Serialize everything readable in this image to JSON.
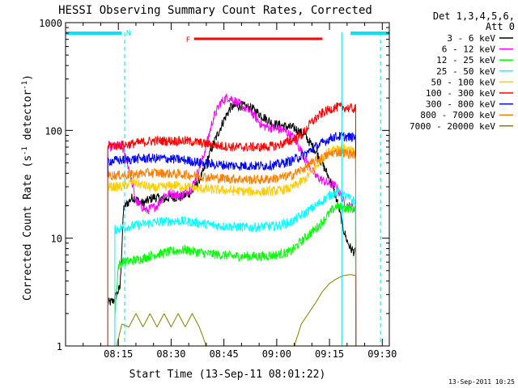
{
  "chart_data": {
    "type": "line",
    "title": "HESSI Observing Summary Count Rates, Corrected",
    "xlabel": "Start Time (13-Sep-11 08:01:22)",
    "ylabel": "Corrected Count Rate (s",
    "ylabel_sup1": "-1",
    "ylabel_mid": " detector",
    "ylabel_sup2": "-1",
    "ylabel_end": ")",
    "yscale": "log",
    "ylim": [
      1,
      1000
    ],
    "xlim_minutes": [
      0,
      92
    ],
    "x_ticks": [
      {
        "label": "08:15",
        "minute": 15
      },
      {
        "label": "08:30",
        "minute": 30
      },
      {
        "label": "08:45",
        "minute": 45
      },
      {
        "label": "09:00",
        "minute": 60
      },
      {
        "label": "09:15",
        "minute": 75
      },
      {
        "label": "09:30",
        "minute": 90
      }
    ],
    "y_ticks": [
      {
        "label": "1",
        "value": 1
      },
      {
        "label": "10",
        "value": 10
      },
      {
        "label": "100",
        "value": 100
      },
      {
        "label": "1000",
        "value": 1000
      }
    ],
    "legend_header": [
      "Det 1,3,4,5,6,",
      "Att 0"
    ],
    "legend_position": "right",
    "footer_date": "13-Sep-2011 10:25",
    "series": [
      {
        "name": "3 - 6 keV",
        "color": "#000000",
        "points": [
          [
            12,
            2.5
          ],
          [
            13.5,
            2.6
          ],
          [
            14.5,
            3
          ],
          [
            15.5,
            3.5
          ],
          [
            16.5,
            19
          ],
          [
            19,
            24
          ],
          [
            22,
            21
          ],
          [
            25,
            24
          ],
          [
            28,
            23
          ],
          [
            30,
            24
          ],
          [
            33,
            24
          ],
          [
            36,
            27
          ],
          [
            39,
            40
          ],
          [
            42,
            75
          ],
          [
            45,
            125
          ],
          [
            47,
            165
          ],
          [
            50,
            170
          ],
          [
            53,
            160
          ],
          [
            56,
            135
          ],
          [
            59,
            115
          ],
          [
            62,
            110
          ],
          [
            65,
            105
          ],
          [
            68,
            90
          ],
          [
            71,
            65
          ],
          [
            74,
            42
          ],
          [
            76,
            30
          ],
          [
            77.5,
            20
          ],
          [
            79,
            12
          ],
          [
            80,
            9.5
          ],
          [
            81,
            8
          ],
          [
            82.5,
            7.2
          ]
        ]
      },
      {
        "name": "6 - 12 keV",
        "color": "#ff00ff",
        "points": [
          [
            12,
            70
          ],
          [
            16,
            72
          ],
          [
            18,
            45
          ],
          [
            20,
            22
          ],
          [
            23,
            18
          ],
          [
            26,
            20
          ],
          [
            28,
            25
          ],
          [
            30,
            26
          ],
          [
            33,
            25
          ],
          [
            36,
            30
          ],
          [
            39,
            55
          ],
          [
            42,
            130
          ],
          [
            44,
            180
          ],
          [
            46,
            205
          ],
          [
            48,
            190
          ],
          [
            50,
            170
          ],
          [
            53,
            145
          ],
          [
            56,
            110
          ],
          [
            59,
            105
          ],
          [
            62,
            100
          ],
          [
            65,
            85
          ],
          [
            68,
            55
          ],
          [
            71,
            38
          ],
          [
            74,
            33
          ],
          [
            77,
            30
          ],
          [
            79,
            22
          ],
          [
            80,
            20
          ],
          [
            82.5,
            19
          ]
        ]
      },
      {
        "name": "12 - 25 keV",
        "color": "#00ff00",
        "points": [
          [
            14,
            2
          ],
          [
            15,
            5.5
          ],
          [
            16,
            6
          ],
          [
            19,
            6.2
          ],
          [
            22,
            6.5
          ],
          [
            25,
            7
          ],
          [
            28,
            7.3
          ],
          [
            31,
            7.6
          ],
          [
            34,
            7.8
          ],
          [
            37,
            7.5
          ],
          [
            40,
            7.2
          ],
          [
            44,
            7
          ],
          [
            48,
            6.8
          ],
          [
            52,
            6.8
          ],
          [
            56,
            6.8
          ],
          [
            60,
            7
          ],
          [
            64,
            7.5
          ],
          [
            68,
            10
          ],
          [
            72,
            13
          ],
          [
            75,
            17
          ],
          [
            77,
            20
          ],
          [
            79,
            19
          ],
          [
            81,
            19
          ],
          [
            82.5,
            18
          ]
        ]
      },
      {
        "name": "25 - 50 keV",
        "color": "#00ffff",
        "points": [
          [
            14,
            12
          ],
          [
            16,
            12.5
          ],
          [
            19,
            13
          ],
          [
            22,
            13.5
          ],
          [
            25,
            14
          ],
          [
            28,
            14.3
          ],
          [
            31,
            14.5
          ],
          [
            34,
            14.3
          ],
          [
            37,
            14
          ],
          [
            40,
            13.5
          ],
          [
            44,
            13
          ],
          [
            48,
            12.8
          ],
          [
            52,
            12.6
          ],
          [
            56,
            12.8
          ],
          [
            60,
            13
          ],
          [
            64,
            14
          ],
          [
            68,
            17
          ],
          [
            72,
            21
          ],
          [
            75,
            25
          ],
          [
            77,
            27
          ],
          [
            79,
            25
          ],
          [
            81,
            23
          ],
          [
            82.5,
            22
          ]
        ]
      },
      {
        "name": "50 - 100 keV",
        "color": "#ffcc00",
        "points": [
          [
            12,
            30
          ],
          [
            16,
            30
          ],
          [
            19,
            33
          ],
          [
            22,
            31
          ],
          [
            25,
            29
          ],
          [
            28,
            30
          ],
          [
            31,
            31
          ],
          [
            34,
            30
          ],
          [
            37,
            29
          ],
          [
            40,
            28.5
          ],
          [
            44,
            28
          ],
          [
            48,
            27.5
          ],
          [
            52,
            27
          ],
          [
            56,
            27
          ],
          [
            60,
            27.5
          ],
          [
            64,
            29
          ],
          [
            68,
            35
          ],
          [
            71,
            45
          ],
          [
            74,
            60
          ],
          [
            76,
            68
          ],
          [
            78,
            70
          ],
          [
            80,
            66
          ],
          [
            82.5,
            62
          ]
        ]
      },
      {
        "name": "100 - 300 keV",
        "color": "#ff0000",
        "points": [
          [
            12,
            72
          ],
          [
            16,
            73
          ],
          [
            19,
            75
          ],
          [
            22,
            78
          ],
          [
            25,
            80
          ],
          [
            28,
            80
          ],
          [
            31,
            80
          ],
          [
            34,
            80
          ],
          [
            37,
            78
          ],
          [
            40,
            75
          ],
          [
            44,
            72
          ],
          [
            48,
            70
          ],
          [
            52,
            70
          ],
          [
            56,
            70
          ],
          [
            60,
            72
          ],
          [
            64,
            80
          ],
          [
            67,
            90
          ],
          [
            70,
            120
          ],
          [
            73,
            145
          ],
          [
            76,
            162
          ],
          [
            78,
            165
          ],
          [
            80,
            162
          ],
          [
            82.5,
            158
          ]
        ]
      },
      {
        "name": "300 - 800 keV",
        "color": "#0000ff",
        "points": [
          [
            12,
            52
          ],
          [
            16,
            53
          ],
          [
            19,
            54
          ],
          [
            22,
            55
          ],
          [
            25,
            55
          ],
          [
            28,
            55
          ],
          [
            31,
            54
          ],
          [
            34,
            53
          ],
          [
            37,
            51
          ],
          [
            40,
            49
          ],
          [
            44,
            48
          ],
          [
            48,
            47
          ],
          [
            52,
            47
          ],
          [
            56,
            47
          ],
          [
            60,
            48
          ],
          [
            64,
            52
          ],
          [
            68,
            60
          ],
          [
            71,
            70
          ],
          [
            74,
            80
          ],
          [
            76,
            87
          ],
          [
            78,
            88
          ],
          [
            80,
            87
          ],
          [
            82.5,
            86
          ]
        ]
      },
      {
        "name": "800 - 7000 keV",
        "color": "#ff7f00",
        "points": [
          [
            12,
            38
          ],
          [
            16,
            38.5
          ],
          [
            19,
            39
          ],
          [
            22,
            40
          ],
          [
            25,
            40.5
          ],
          [
            28,
            40
          ],
          [
            31,
            39.5
          ],
          [
            34,
            39
          ],
          [
            37,
            38
          ],
          [
            40,
            37
          ],
          [
            44,
            36
          ],
          [
            48,
            35.5
          ],
          [
            52,
            35
          ],
          [
            56,
            35
          ],
          [
            60,
            36
          ],
          [
            64,
            38
          ],
          [
            68,
            45
          ],
          [
            71,
            52
          ],
          [
            74,
            58
          ],
          [
            76,
            62
          ],
          [
            78,
            63
          ],
          [
            80,
            61
          ],
          [
            82.5,
            60
          ]
        ]
      },
      {
        "name": "7000 - 20000 keV",
        "color": "#808000",
        "points": [
          [
            14.5,
            1
          ],
          [
            16,
            1.6
          ],
          [
            18,
            1.5
          ],
          [
            20,
            2
          ],
          [
            22,
            1.5
          ],
          [
            24,
            2
          ],
          [
            26,
            1.5
          ],
          [
            28,
            2
          ],
          [
            30,
            1.5
          ],
          [
            32,
            2
          ],
          [
            34,
            1.5
          ],
          [
            36,
            2
          ],
          [
            38,
            1.5
          ],
          [
            40,
            1
          ],
          [
            45,
            1
          ],
          [
            50,
            1
          ],
          [
            55,
            1
          ],
          [
            60,
            1
          ],
          [
            65,
            1
          ],
          [
            67,
            1.6
          ],
          [
            69,
            2
          ],
          [
            71,
            2.5
          ],
          [
            73,
            3.2
          ],
          [
            75,
            3.8
          ],
          [
            77,
            4.2
          ],
          [
            79,
            4.5
          ],
          [
            81,
            4.6
          ],
          [
            82.5,
            4.5
          ]
        ]
      }
    ],
    "overlays": {
      "lines_color": "#00e5ee",
      "flare_color": "#ff0000",
      "night_bars_minutes": [
        [
          0,
          16
        ],
        [
          81,
          92
        ]
      ],
      "night_label": "N",
      "night_dashed_minutes": [
        16.8,
        89.5
      ],
      "saa_solid_minute": 78.5,
      "flare_label": "F",
      "flare_minutes": [
        36.5,
        73
      ]
    }
  }
}
